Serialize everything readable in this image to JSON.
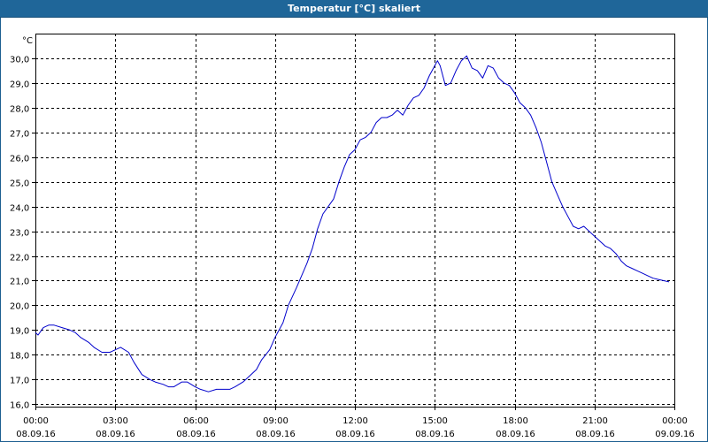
{
  "window": {
    "title": "Temperatur [°C] skaliert"
  },
  "chart_data": {
    "type": "line",
    "title": "Temperatur [°C] skaliert",
    "ylabel": "°C",
    "xlabel": "",
    "ylim": [
      15.9,
      31.0
    ],
    "xlim": [
      0,
      24
    ],
    "y_ticks": [
      "16,0",
      "17,0",
      "18,0",
      "19,0",
      "20,0",
      "21,0",
      "22,0",
      "23,0",
      "24,0",
      "25,0",
      "26,0",
      "27,0",
      "28,0",
      "29,0",
      "30,0"
    ],
    "y_tick_values": [
      16,
      17,
      18,
      19,
      20,
      21,
      22,
      23,
      24,
      25,
      26,
      27,
      28,
      29,
      30
    ],
    "x_ticks": [
      {
        "hours": 0,
        "time": "00:00",
        "date": "08.09.16"
      },
      {
        "hours": 3,
        "time": "03:00",
        "date": "08.09.16"
      },
      {
        "hours": 6,
        "time": "06:00",
        "date": "08.09.16"
      },
      {
        "hours": 9,
        "time": "09:00",
        "date": "08.09.16"
      },
      {
        "hours": 12,
        "time": "12:00",
        "date": "08.09.16"
      },
      {
        "hours": 15,
        "time": "15:00",
        "date": "08.09.16"
      },
      {
        "hours": 18,
        "time": "18:00",
        "date": "08.09.16"
      },
      {
        "hours": 21,
        "time": "21:00",
        "date": "08.09.16"
      },
      {
        "hours": 24,
        "time": "00:00",
        "date": "09.09.16"
      }
    ],
    "grid": true,
    "series": [
      {
        "color": "#0000cc",
        "x": [
          0.0,
          0.1,
          0.3,
          0.5,
          0.7,
          1.0,
          1.3,
          1.5,
          1.7,
          2.0,
          2.2,
          2.5,
          2.8,
          3.0,
          3.2,
          3.5,
          3.7,
          4.0,
          4.3,
          4.5,
          4.8,
          5.0,
          5.2,
          5.5,
          5.7,
          6.0,
          6.2,
          6.5,
          6.8,
          7.0,
          7.3,
          7.5,
          7.8,
          8.0,
          8.3,
          8.5,
          8.8,
          9.0,
          9.3,
          9.5,
          9.8,
          10.0,
          10.2,
          10.4,
          10.6,
          10.8,
          11.0,
          11.2,
          11.4,
          11.6,
          11.8,
          12.0,
          12.2,
          12.4,
          12.5,
          12.6,
          12.8,
          13.0,
          13.2,
          13.4,
          13.6,
          13.8,
          14.0,
          14.2,
          14.4,
          14.6,
          14.8,
          15.0,
          15.1,
          15.2,
          15.4,
          15.6,
          15.8,
          16.0,
          16.2,
          16.4,
          16.6,
          16.8,
          17.0,
          17.2,
          17.4,
          17.6,
          17.8,
          18.0,
          18.2,
          18.4,
          18.6,
          18.8,
          19.0,
          19.2,
          19.4,
          19.6,
          19.8,
          20.0,
          20.2,
          20.4,
          20.6,
          20.8,
          21.0,
          21.2,
          21.4,
          21.6,
          21.8,
          22.0,
          22.2,
          22.4,
          22.6,
          22.8,
          23.0,
          23.2,
          23.4,
          23.6,
          23.8
        ],
        "y": [
          18.9,
          18.8,
          19.1,
          19.2,
          19.2,
          19.1,
          19.0,
          18.9,
          18.7,
          18.5,
          18.3,
          18.1,
          18.1,
          18.2,
          18.3,
          18.1,
          17.7,
          17.2,
          17.0,
          16.9,
          16.8,
          16.7,
          16.7,
          16.9,
          16.9,
          16.7,
          16.6,
          16.5,
          16.6,
          16.6,
          16.6,
          16.7,
          16.9,
          17.1,
          17.4,
          17.8,
          18.2,
          18.7,
          19.3,
          20.0,
          20.7,
          21.2,
          21.7,
          22.3,
          23.1,
          23.7,
          24.0,
          24.3,
          25.0,
          25.6,
          26.1,
          26.3,
          26.7,
          26.8,
          26.9,
          27.0,
          27.4,
          27.6,
          27.6,
          27.7,
          27.9,
          27.7,
          28.1,
          28.4,
          28.5,
          28.8,
          29.3,
          29.7,
          29.9,
          29.7,
          28.9,
          29.0,
          29.5,
          29.9,
          30.1,
          29.6,
          29.5,
          29.2,
          29.7,
          29.6,
          29.2,
          29.0,
          28.9,
          28.6,
          28.2,
          28.0,
          27.7,
          27.2,
          26.6,
          25.8,
          25.0,
          24.5,
          24.0,
          23.6,
          23.2,
          23.1,
          23.2,
          23.0,
          22.8,
          22.6,
          22.4,
          22.3,
          22.1,
          21.8,
          21.6,
          21.5,
          21.4,
          21.3,
          21.2,
          21.1,
          21.05,
          21.0,
          20.95
        ]
      }
    ]
  }
}
